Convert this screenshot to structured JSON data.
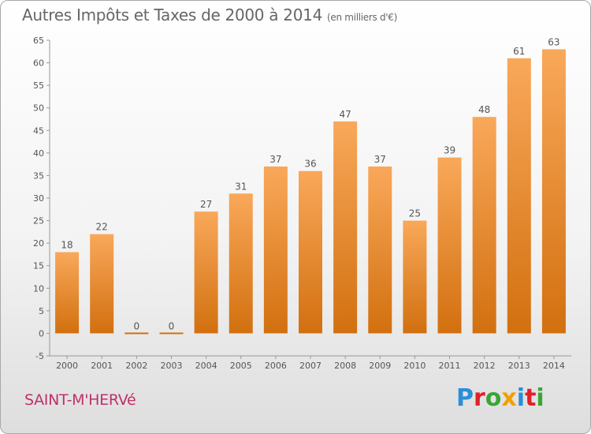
{
  "title": "Autres Impôts et Taxes de 2000 à 2014",
  "subtitle": "(en milliers d'€)",
  "place": "SAINT-M'HERVé",
  "logo": {
    "text": "Proxiti",
    "colors": [
      "#2a8fd6",
      "#e0202a",
      "#3aa535",
      "#f2a000",
      "#2a8fd6",
      "#e0202a",
      "#3aa535"
    ]
  },
  "chart_data": {
    "type": "bar",
    "categories": [
      "2000",
      "2001",
      "2002",
      "2003",
      "2004",
      "2005",
      "2006",
      "2007",
      "2008",
      "2009",
      "2010",
      "2011",
      "2012",
      "2013",
      "2014"
    ],
    "values": [
      18,
      22,
      0,
      0,
      27,
      31,
      37,
      36,
      47,
      37,
      25,
      39,
      48,
      61,
      63
    ],
    "data_labels": [
      "18",
      "22",
      "0",
      "0",
      "27",
      "31",
      "37",
      "36",
      "47",
      "37",
      "25",
      "39",
      "48",
      "61",
      "63"
    ],
    "yticks": [
      "-5",
      "0",
      "5",
      "10",
      "15",
      "20",
      "25",
      "30",
      "35",
      "40",
      "45",
      "50",
      "55",
      "60",
      "65"
    ],
    "ylim": [
      -5,
      65
    ],
    "grid": false,
    "bar_color_top": "#f9a85a",
    "bar_color_bottom": "#d2700f"
  }
}
